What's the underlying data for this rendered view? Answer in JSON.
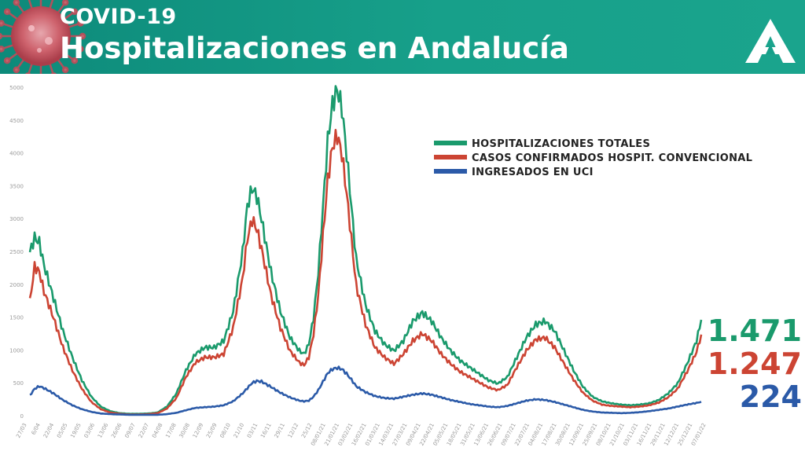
{
  "header": {
    "kicker": "COVID-19",
    "title": "Hospitalizaciones en Andalucía",
    "logo_icon": "junta-andalucia-logo",
    "decoration_icon": "coronavirus-icon"
  },
  "chart_data": {
    "type": "line",
    "title": "Hospitalizaciones en Andalucía",
    "xlabel": "",
    "ylabel": "",
    "ylim": [
      0,
      5000
    ],
    "y_ticks": [
      0,
      500,
      1000,
      1500,
      2000,
      2500,
      3000,
      3500,
      4000,
      4500,
      5000
    ],
    "x_tick_labels": [
      "27/03",
      "6/04",
      "22/04",
      "05/05",
      "19/05",
      "03/06",
      "13/06",
      "26/06",
      "09/07",
      "22/07",
      "04/08",
      "17/08",
      "30/08",
      "12/09",
      "25/09",
      "08/10",
      "21/10",
      "03/11",
      "16/11",
      "29/11",
      "12/12",
      "25/12",
      "08/01/21",
      "21/01/21",
      "03/02/21",
      "16/02/21",
      "01/03/21",
      "14/03/21",
      "27/03/21",
      "09/04/21",
      "22/04/21",
      "05/05/21",
      "18/05/21",
      "31/05/21",
      "13/06/21",
      "26/06/21",
      "09/07/21",
      "22/07/21",
      "04/08/21",
      "17/08/21",
      "30/08/21",
      "12/09/21",
      "25/09/21",
      "08/10/21",
      "21/10/21",
      "03/11/21",
      "16/11/21",
      "29/11/21",
      "12/12/21",
      "25/12/21",
      "07/01/22"
    ],
    "legend_position": "top-right",
    "grid": false,
    "series": [
      {
        "name": "HOSPITALIZACIONES TOTALES",
        "color": "#1a9a6c",
        "final_label": "1.471",
        "points": [
          [
            0,
            2500
          ],
          [
            1,
            2720
          ],
          [
            2,
            2650
          ],
          [
            3,
            2300
          ],
          [
            5,
            1800
          ],
          [
            7,
            1300
          ],
          [
            9,
            900
          ],
          [
            11,
            550
          ],
          [
            13,
            300
          ],
          [
            15,
            150
          ],
          [
            17,
            80
          ],
          [
            19,
            50
          ],
          [
            21,
            40
          ],
          [
            23,
            40
          ],
          [
            25,
            45
          ],
          [
            27,
            60
          ],
          [
            29,
            150
          ],
          [
            31,
            350
          ],
          [
            33,
            700
          ],
          [
            35,
            950
          ],
          [
            37,
            1050
          ],
          [
            39,
            1050
          ],
          [
            41,
            1150
          ],
          [
            43,
            1600
          ],
          [
            45,
            2500
          ],
          [
            46,
            3200
          ],
          [
            47,
            3480
          ],
          [
            48,
            3350
          ],
          [
            49,
            3000
          ],
          [
            51,
            2200
          ],
          [
            53,
            1600
          ],
          [
            55,
            1200
          ],
          [
            57,
            1000
          ],
          [
            58,
            950
          ],
          [
            59,
            1100
          ],
          [
            60,
            1500
          ],
          [
            61,
            2200
          ],
          [
            62,
            3200
          ],
          [
            63,
            4200
          ],
          [
            64,
            4750
          ],
          [
            65,
            4980
          ],
          [
            66,
            4700
          ],
          [
            67,
            4000
          ],
          [
            68,
            3200
          ],
          [
            69,
            2400
          ],
          [
            71,
            1700
          ],
          [
            73,
            1300
          ],
          [
            75,
            1100
          ],
          [
            77,
            1000
          ],
          [
            79,
            1150
          ],
          [
            81,
            1450
          ],
          [
            83,
            1580
          ],
          [
            85,
            1450
          ],
          [
            87,
            1200
          ],
          [
            89,
            1000
          ],
          [
            91,
            850
          ],
          [
            93,
            750
          ],
          [
            95,
            650
          ],
          [
            97,
            550
          ],
          [
            99,
            500
          ],
          [
            101,
            600
          ],
          [
            103,
            900
          ],
          [
            105,
            1200
          ],
          [
            107,
            1400
          ],
          [
            109,
            1450
          ],
          [
            111,
            1300
          ],
          [
            113,
            1000
          ],
          [
            115,
            700
          ],
          [
            117,
            450
          ],
          [
            119,
            300
          ],
          [
            121,
            230
          ],
          [
            123,
            200
          ],
          [
            125,
            180
          ],
          [
            127,
            170
          ],
          [
            129,
            180
          ],
          [
            131,
            200
          ],
          [
            133,
            250
          ],
          [
            135,
            350
          ],
          [
            137,
            500
          ],
          [
            139,
            800
          ],
          [
            141,
            1150
          ],
          [
            142,
            1471
          ]
        ]
      },
      {
        "name": "CASOS CONFIRMADOS HOSPIT. CONVENCIONAL",
        "color": "#cc4433",
        "final_label": "1.247",
        "points": [
          [
            0,
            1750
          ],
          [
            1,
            2280
          ],
          [
            2,
            2200
          ],
          [
            3,
            1900
          ],
          [
            5,
            1500
          ],
          [
            7,
            1050
          ],
          [
            9,
            700
          ],
          [
            11,
            420
          ],
          [
            13,
            220
          ],
          [
            15,
            110
          ],
          [
            17,
            60
          ],
          [
            19,
            40
          ],
          [
            21,
            30
          ],
          [
            23,
            30
          ],
          [
            25,
            35
          ],
          [
            27,
            50
          ],
          [
            29,
            120
          ],
          [
            31,
            280
          ],
          [
            33,
            600
          ],
          [
            35,
            820
          ],
          [
            37,
            900
          ],
          [
            39,
            900
          ],
          [
            41,
            950
          ],
          [
            43,
            1350
          ],
          [
            45,
            2100
          ],
          [
            46,
            2700
          ],
          [
            47,
            3000
          ],
          [
            48,
            2850
          ],
          [
            49,
            2550
          ],
          [
            51,
            1850
          ],
          [
            53,
            1350
          ],
          [
            55,
            1000
          ],
          [
            57,
            820
          ],
          [
            58,
            780
          ],
          [
            59,
            900
          ],
          [
            60,
            1250
          ],
          [
            61,
            1850
          ],
          [
            62,
            2750
          ],
          [
            63,
            3600
          ],
          [
            64,
            4100
          ],
          [
            65,
            4280
          ],
          [
            66,
            4000
          ],
          [
            67,
            3400
          ],
          [
            68,
            2700
          ],
          [
            69,
            2000
          ],
          [
            71,
            1400
          ],
          [
            73,
            1050
          ],
          [
            75,
            900
          ],
          [
            77,
            800
          ],
          [
            79,
            950
          ],
          [
            81,
            1150
          ],
          [
            83,
            1260
          ],
          [
            85,
            1150
          ],
          [
            87,
            950
          ],
          [
            89,
            800
          ],
          [
            91,
            680
          ],
          [
            93,
            600
          ],
          [
            95,
            520
          ],
          [
            97,
            440
          ],
          [
            99,
            400
          ],
          [
            101,
            480
          ],
          [
            103,
            750
          ],
          [
            105,
            1000
          ],
          [
            107,
            1170
          ],
          [
            109,
            1200
          ],
          [
            111,
            1050
          ],
          [
            113,
            800
          ],
          [
            115,
            560
          ],
          [
            117,
            360
          ],
          [
            119,
            240
          ],
          [
            121,
            180
          ],
          [
            123,
            160
          ],
          [
            125,
            150
          ],
          [
            127,
            140
          ],
          [
            129,
            150
          ],
          [
            131,
            170
          ],
          [
            133,
            210
          ],
          [
            135,
            290
          ],
          [
            137,
            420
          ],
          [
            139,
            680
          ],
          [
            141,
            980
          ],
          [
            142,
            1247
          ]
        ]
      },
      {
        "name": "INGRESADOS EN UCI",
        "color": "#2b5aa8",
        "final_label": "224",
        "points": [
          [
            0,
            320
          ],
          [
            1,
            420
          ],
          [
            2,
            460
          ],
          [
            3,
            430
          ],
          [
            5,
            350
          ],
          [
            7,
            250
          ],
          [
            9,
            170
          ],
          [
            11,
            110
          ],
          [
            13,
            70
          ],
          [
            15,
            45
          ],
          [
            17,
            35
          ],
          [
            19,
            30
          ],
          [
            21,
            25
          ],
          [
            23,
            25
          ],
          [
            25,
            25
          ],
          [
            27,
            25
          ],
          [
            29,
            35
          ],
          [
            31,
            55
          ],
          [
            33,
            95
          ],
          [
            35,
            130
          ],
          [
            37,
            140
          ],
          [
            39,
            150
          ],
          [
            41,
            170
          ],
          [
            43,
            230
          ],
          [
            45,
            350
          ],
          [
            46,
            430
          ],
          [
            47,
            510
          ],
          [
            48,
            540
          ],
          [
            49,
            530
          ],
          [
            51,
            450
          ],
          [
            53,
            360
          ],
          [
            55,
            290
          ],
          [
            57,
            240
          ],
          [
            58,
            230
          ],
          [
            59,
            240
          ],
          [
            60,
            300
          ],
          [
            61,
            400
          ],
          [
            62,
            530
          ],
          [
            63,
            660
          ],
          [
            64,
            720
          ],
          [
            65,
            740
          ],
          [
            66,
            720
          ],
          [
            67,
            650
          ],
          [
            68,
            560
          ],
          [
            69,
            460
          ],
          [
            71,
            370
          ],
          [
            73,
            310
          ],
          [
            75,
            280
          ],
          [
            77,
            270
          ],
          [
            79,
            300
          ],
          [
            81,
            330
          ],
          [
            83,
            350
          ],
          [
            85,
            330
          ],
          [
            87,
            290
          ],
          [
            89,
            250
          ],
          [
            91,
            220
          ],
          [
            93,
            190
          ],
          [
            95,
            170
          ],
          [
            97,
            150
          ],
          [
            99,
            140
          ],
          [
            101,
            160
          ],
          [
            103,
            200
          ],
          [
            105,
            240
          ],
          [
            107,
            260
          ],
          [
            109,
            250
          ],
          [
            111,
            220
          ],
          [
            113,
            180
          ],
          [
            115,
            140
          ],
          [
            117,
            100
          ],
          [
            119,
            75
          ],
          [
            121,
            60
          ],
          [
            123,
            55
          ],
          [
            125,
            50
          ],
          [
            127,
            55
          ],
          [
            129,
            65
          ],
          [
            131,
            80
          ],
          [
            133,
            100
          ],
          [
            135,
            120
          ],
          [
            137,
            150
          ],
          [
            139,
            180
          ],
          [
            141,
            205
          ],
          [
            142,
            224
          ]
        ]
      }
    ]
  }
}
